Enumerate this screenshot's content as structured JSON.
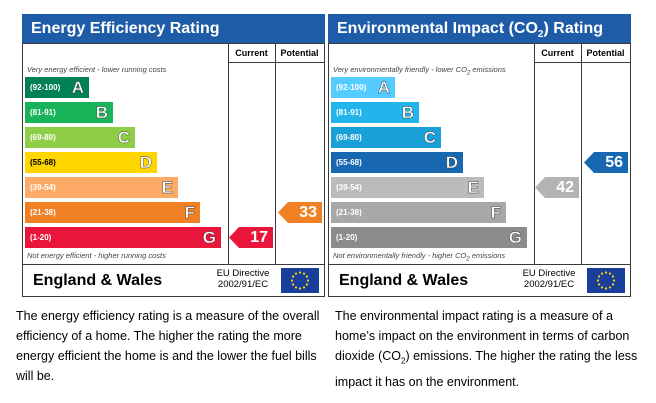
{
  "left": {
    "title": "Energy Efficiency Rating",
    "col_current": "Current",
    "col_potential": "Potential",
    "top_note": "Very energy efficient - lower running costs",
    "bottom_note": "Not energy efficient - higher running costs",
    "bands": [
      {
        "range": "(92-100)",
        "letter": "A",
        "color": "#008054"
      },
      {
        "range": "(81-91)",
        "letter": "B",
        "color": "#19b459"
      },
      {
        "range": "(69-80)",
        "letter": "C",
        "color": "#8dce46"
      },
      {
        "range": "(55-68)",
        "letter": "D",
        "color": "#ffd500"
      },
      {
        "range": "(39-54)",
        "letter": "E",
        "color": "#fcaa65"
      },
      {
        "range": "(21-38)",
        "letter": "F",
        "color": "#ef8023"
      },
      {
        "range": "(1-20)",
        "letter": "G",
        "color": "#e9153b"
      }
    ],
    "current": {
      "value": "17",
      "color": "#e9153b"
    },
    "potential": {
      "value": "33",
      "color": "#ef8023"
    },
    "country": "England & Wales",
    "directive_line1": "EU Directive",
    "directive_line2": "2002/91/EC"
  },
  "right": {
    "title_prefix": "Environmental Impact (CO",
    "title_sub": "2",
    "title_suffix": ") Rating",
    "col_current": "Current",
    "col_potential": "Potential",
    "top_note_prefix": "Very environmentally friendly - lower CO",
    "top_note_sub": "2",
    "top_note_suffix": " emissions",
    "bottom_note_prefix": "Not environmentally friendly - higher CO",
    "bottom_note_sub": "2",
    "bottom_note_suffix": " emissions",
    "bands": [
      {
        "range": "(92-100)",
        "letter": "A",
        "color": "#55ccff"
      },
      {
        "range": "(81-91)",
        "letter": "B",
        "color": "#22b5eb"
      },
      {
        "range": "(69-80)",
        "letter": "C",
        "color": "#1aa0d8"
      },
      {
        "range": "(55-68)",
        "letter": "D",
        "color": "#1868b1"
      },
      {
        "range": "(39-54)",
        "letter": "E",
        "color": "#bbbbbb"
      },
      {
        "range": "(21-38)",
        "letter": "F",
        "color": "#a8a8a8"
      },
      {
        "range": "(1-20)",
        "letter": "G",
        "color": "#8c8c8c"
      }
    ],
    "current": {
      "value": "42",
      "color": "#b3b3b3"
    },
    "potential": {
      "value": "56",
      "color": "#1868b1"
    },
    "country": "England & Wales",
    "directive_line1": "EU Directive",
    "directive_line2": "2002/91/EC"
  },
  "captions": {
    "left": "The energy efficiency rating is a measure of the overall efficiency of a home. The higher the rating the more energy efficient the home is and the lower the fuel bills will be.",
    "right_prefix": "The environmental impact rating is a measure of a home’s impact on the environment in terms of carbon dioxide (CO",
    "right_sub": "2",
    "right_suffix": ") emissions. The higher the rating the less impact it has on the environment."
  }
}
